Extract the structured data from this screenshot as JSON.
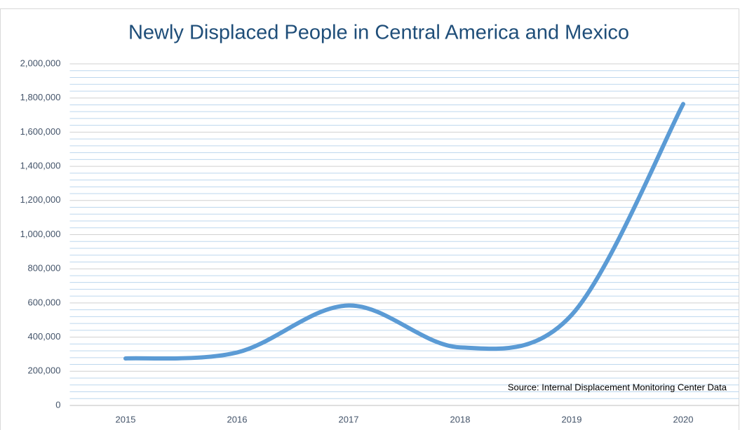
{
  "chart_data": {
    "type": "line",
    "title": "Newly Displaced People in Central America and Mexico",
    "annotation": "Source: Internal Displacement Monitoring Center Data",
    "categories": [
      "2015",
      "2016",
      "2017",
      "2018",
      "2019",
      "2020"
    ],
    "series": [
      {
        "name": "Newly Displaced People",
        "color": "#5b9bd5",
        "values": [
          275000,
          310000,
          585000,
          340000,
          530000,
          1765000
        ]
      }
    ],
    "smooth": true,
    "ylim": [
      0,
      2000000
    ],
    "yticks": [
      0,
      {
        "value": 200000,
        "label": "200,000"
      },
      {
        "value": 400000,
        "label": "400,000"
      },
      {
        "value": 600000,
        "label": "600,000"
      },
      {
        "value": 800000,
        "label": "800,000"
      },
      {
        "value": 1000000,
        "label": "1,000,000"
      },
      {
        "value": 1200000,
        "label": "1,200,000"
      },
      {
        "value": 1400000,
        "label": "1,400,000"
      },
      {
        "value": 1600000,
        "label": "1,600,000"
      },
      {
        "value": 1800000,
        "label": "1,800,000"
      },
      {
        "value": 2000000,
        "label": "2,000,000"
      }
    ],
    "grid": true
  }
}
